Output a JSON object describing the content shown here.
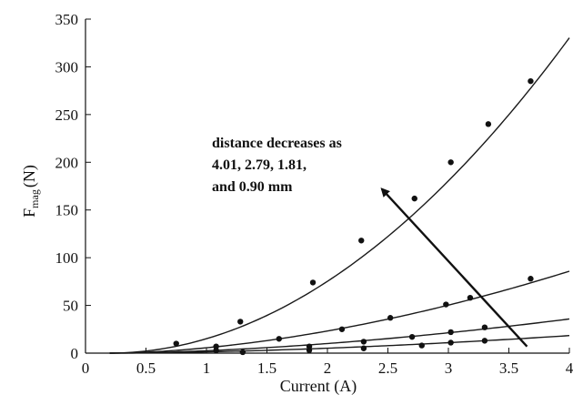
{
  "chart_data": {
    "type": "scatter",
    "xlabel": "Current (A)",
    "ylabel": "F",
    "ylabel_sub": "mag",
    "ylabel_unit": "(N)",
    "xlim": [
      0,
      4
    ],
    "ylim": [
      0,
      350
    ],
    "x_ticks": [
      0,
      0.5,
      1,
      1.5,
      2,
      2.5,
      3,
      3.5,
      4
    ],
    "x_tick_labels": [
      "0",
      "0.5",
      "1",
      "1.5",
      "2",
      "2.5",
      "3",
      "3.5",
      "4"
    ],
    "y_ticks": [
      0,
      50,
      100,
      150,
      200,
      250,
      300,
      350
    ],
    "y_tick_labels": [
      "0",
      "50",
      "100",
      "150",
      "200",
      "250",
      "300",
      "350"
    ],
    "grid": false,
    "legend": "none",
    "colors": {
      "line": "#1a1a1a",
      "marker": "#111111",
      "arrow": "#111111"
    },
    "series": [
      {
        "points": [
          [
            0.75,
            10
          ],
          [
            1.28,
            33
          ],
          [
            1.88,
            74
          ],
          [
            2.28,
            118
          ],
          [
            2.72,
            162
          ],
          [
            3.02,
            200
          ],
          [
            3.33,
            240
          ],
          [
            3.68,
            285
          ]
        ],
        "fit": {
          "x0": 0.2,
          "x_end": 4.0,
          "coef": 23.5,
          "exp": 1.98
        }
      },
      {
        "points": [
          [
            1.08,
            7
          ],
          [
            1.6,
            15
          ],
          [
            2.12,
            25
          ],
          [
            2.52,
            37
          ],
          [
            2.98,
            51
          ],
          [
            3.18,
            58
          ],
          [
            3.68,
            78
          ]
        ],
        "fit": {
          "x0": 0.2,
          "x_end": 4.0,
          "coef": 8.3,
          "exp": 1.75
        }
      },
      {
        "points": [
          [
            1.08,
            3
          ],
          [
            1.85,
            7
          ],
          [
            2.3,
            12
          ],
          [
            2.7,
            17
          ],
          [
            3.02,
            22
          ],
          [
            3.3,
            27
          ]
        ],
        "fit": {
          "x0": 0.2,
          "x_end": 4.0,
          "coef": 3.7,
          "exp": 1.7
        }
      },
      {
        "points": [
          [
            1.3,
            1
          ],
          [
            1.85,
            3
          ],
          [
            2.3,
            5
          ],
          [
            2.78,
            8
          ],
          [
            3.02,
            11
          ],
          [
            3.3,
            13
          ]
        ],
        "fit": {
          "x0": 0.2,
          "x_end": 4.0,
          "coef": 1.9,
          "exp": 1.7
        }
      }
    ],
    "annotation": {
      "lines": [
        "distance decreases as",
        "4.01, 2.79, 1.81,",
        "and 0.90 mm"
      ],
      "arrow_from": [
        3.65,
        7
      ],
      "arrow_to": [
        2.45,
        172
      ]
    }
  }
}
